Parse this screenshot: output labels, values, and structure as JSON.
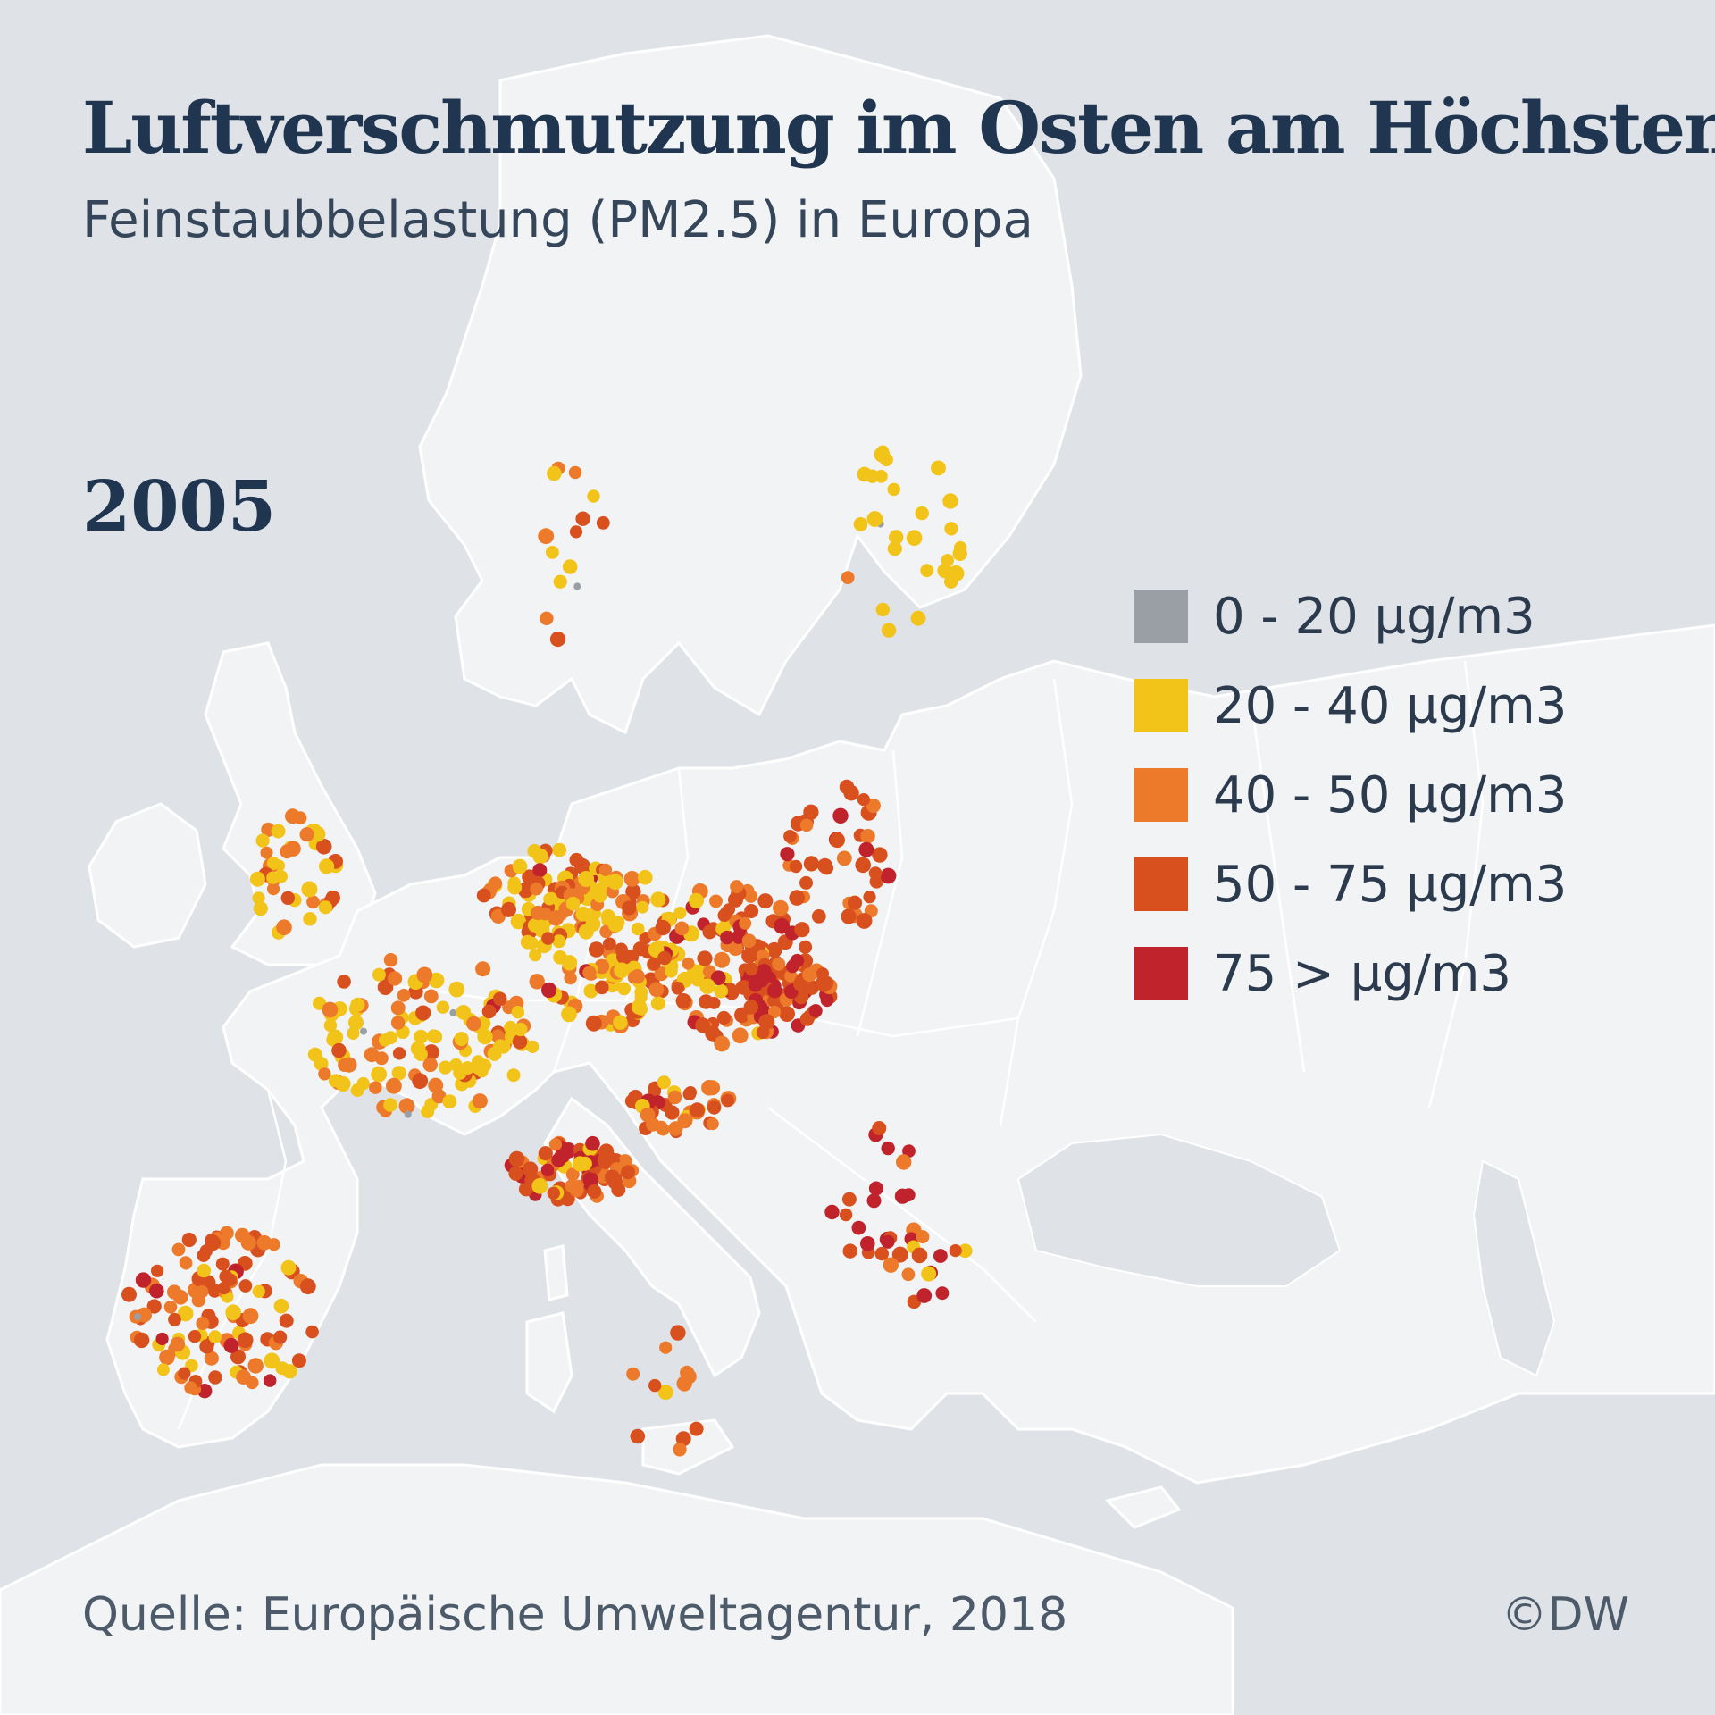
{
  "title": "Luftverschmutzung im Osten am Höchsten",
  "subtitle": "Feinstaubbelastung (PM2.5) in Europa",
  "year": "2005",
  "source": "Quelle: Europäische Umweltagentur, 2018",
  "credit": "©DW",
  "legend": [
    {
      "label": "0 - 20 µg/m3",
      "color": "#9a9ea5"
    },
    {
      "label": "20 - 40 µg/m3",
      "color": "#f2c318"
    },
    {
      "label": "40 - 50 µg/m3",
      "color": "#ec7a2a"
    },
    {
      "label": "50 - 75 µg/m3",
      "color": "#d9501f"
    },
    {
      "label": "75 > µg/m3",
      "color": "#c0232c"
    }
  ]
}
